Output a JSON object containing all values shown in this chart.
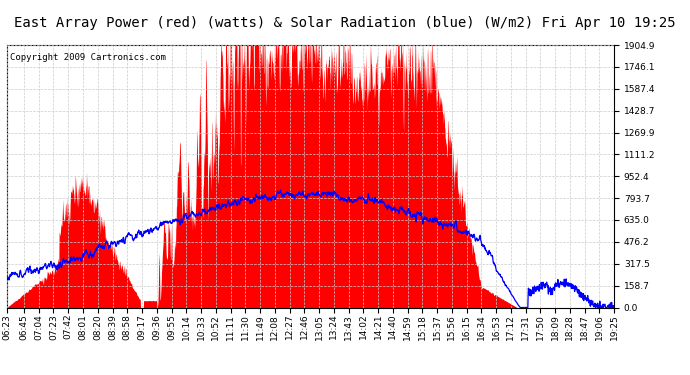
{
  "title": "East Array Power (red) (watts) & Solar Radiation (blue) (W/m2) Fri Apr 10 19:25",
  "copyright": "Copyright 2009 Cartronics.com",
  "ymin": 0.0,
  "ymax": 1904.9,
  "yticks": [
    0.0,
    158.7,
    317.5,
    476.2,
    635.0,
    793.7,
    952.4,
    1111.2,
    1269.9,
    1428.7,
    1587.4,
    1746.1,
    1904.9
  ],
  "bg_color": "#ffffff",
  "plot_bg_color": "#ffffff",
  "grid_color": "#cccccc",
  "red_color": "#ff0000",
  "blue_color": "#0000ff",
  "title_fontsize": 10,
  "copyright_fontsize": 6.5,
  "tick_fontsize": 6.5,
  "x_tick_labels": [
    "06:23",
    "06:45",
    "07:04",
    "07:23",
    "07:42",
    "08:01",
    "08:20",
    "08:39",
    "08:58",
    "09:17",
    "09:36",
    "09:55",
    "10:14",
    "10:33",
    "10:52",
    "11:11",
    "11:30",
    "11:49",
    "12:08",
    "12:27",
    "12:46",
    "13:05",
    "13:24",
    "13:43",
    "14:02",
    "14:21",
    "14:40",
    "14:59",
    "15:18",
    "15:37",
    "15:56",
    "16:15",
    "16:34",
    "16:53",
    "17:12",
    "17:31",
    "17:50",
    "18:09",
    "18:28",
    "18:47",
    "19:06",
    "19:25"
  ]
}
